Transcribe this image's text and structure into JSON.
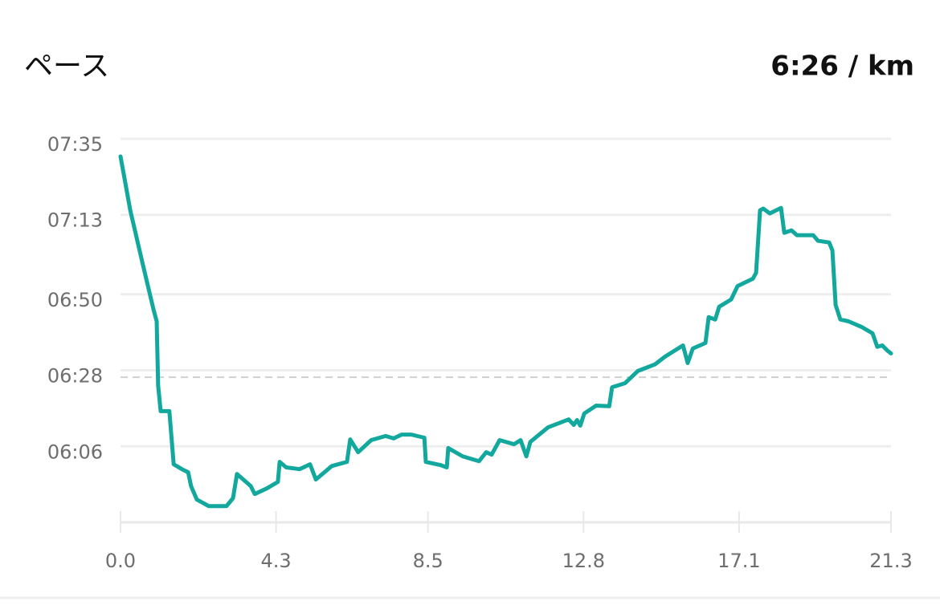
{
  "chart_data": {
    "type": "line",
    "title": "ペース",
    "average_label": "6:26 / km",
    "average": 386,
    "x": [
      0,
      0.27,
      0.62,
      0.91,
      1.0,
      1.04,
      1.11,
      1.35,
      1.47,
      1.73,
      1.87,
      1.95,
      2.11,
      2.44,
      2.93,
      3.11,
      3.22,
      3.6,
      3.71,
      4.04,
      4.35,
      4.4,
      4.58,
      4.95,
      5.24,
      5.4,
      5.84,
      6.26,
      6.35,
      6.57,
      6.93,
      7.33,
      7.55,
      7.77,
      8.04,
      8.4,
      8.44,
      8.84,
      9.02,
      9.06,
      9.46,
      9.91,
      10.11,
      10.26,
      10.48,
      10.88,
      11.06,
      11.22,
      11.33,
      11.82,
      12.39,
      12.53,
      12.62,
      12.71,
      12.82,
      13.15,
      13.51,
      13.59,
      13.95,
      14.3,
      14.77,
      15.06,
      15.55,
      15.68,
      15.82,
      16.17,
      16.26,
      16.44,
      16.55,
      16.88,
      17.06,
      17.48,
      17.57,
      17.68,
      17.77,
      17.95,
      18.26,
      18.35,
      18.55,
      18.7,
      19.15,
      19.28,
      19.59,
      19.68,
      19.77,
      19.9,
      20.12,
      20.48,
      20.79,
      20.92,
      21.06,
      21.19,
      21.3
    ],
    "series": [
      {
        "color": "#12a89d",
        "values": [
          449.9,
          434.3,
          418.5,
          405.7,
          402.2,
          383.6,
          376.2,
          376.2,
          360.8,
          359.2,
          358.5,
          354.5,
          350.6,
          348.7,
          348.7,
          351.0,
          358.0,
          354.5,
          352.2,
          353.8,
          355.7,
          361.5,
          359.9,
          359.4,
          360.8,
          356.4,
          360.3,
          361.5,
          368.0,
          364.3,
          367.8,
          369.0,
          368.3,
          369.4,
          369.4,
          368.5,
          361.5,
          360.6,
          359.9,
          365.5,
          363.1,
          361.7,
          364.3,
          363.6,
          367.8,
          366.6,
          367.8,
          363.1,
          367.3,
          371.5,
          373.8,
          372.2,
          373.6,
          372.0,
          375.5,
          377.8,
          377.6,
          383.1,
          384.3,
          387.8,
          389.7,
          392.0,
          395.2,
          390.1,
          394.3,
          395.9,
          403.4,
          402.7,
          406.4,
          408.5,
          412.4,
          414.5,
          416.2,
          434.3,
          434.8,
          433.4,
          435.0,
          427.8,
          428.5,
          427.1,
          427.1,
          425.5,
          425.0,
          422.7,
          406.9,
          402.7,
          402.2,
          400.6,
          398.7,
          394.8,
          395.2,
          393.8,
          392.9
        ]
      }
    ],
    "xlim": [
      0,
      21.3
    ],
    "xticks": [
      {
        "value": 0,
        "label": "0.0"
      },
      4.3,
      8.5,
      12.8,
      17.1,
      21.3
    ],
    "ylim": [
      344,
      455
    ],
    "yticks": [
      {
        "value": 455,
        "label": "07:35"
      },
      {
        "value": 433,
        "label": "07:13"
      },
      {
        "value": 410,
        "label": "06:50"
      },
      {
        "value": 388,
        "label": "06:28"
      },
      {
        "value": 366,
        "label": "06:06"
      }
    ],
    "grid": true
  }
}
